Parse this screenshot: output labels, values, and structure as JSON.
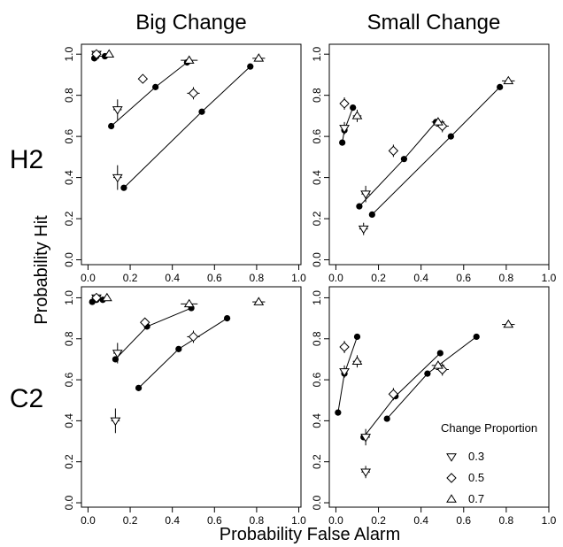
{
  "columns": [
    "Big Change",
    "Small Change"
  ],
  "rows": [
    "H2",
    "C2"
  ],
  "xlabel": "Probability False Alarm",
  "ylabel": "Probability Hit",
  "ticks": [
    "0.0",
    "0.2",
    "0.4",
    "0.6",
    "0.8",
    "1.0"
  ],
  "legend": {
    "title": "Change Proportion",
    "entries": [
      {
        "label": "0.3",
        "marker": "triangle-down"
      },
      {
        "label": "0.5",
        "marker": "diamond"
      },
      {
        "label": "0.7",
        "marker": "triangle-up"
      }
    ]
  },
  "chart_data": [
    {
      "type": "scatter",
      "column": "Big Change",
      "row": "H2",
      "xlim": [
        0,
        1
      ],
      "ylim": [
        0,
        1
      ],
      "model_lines": [
        [
          [
            0.03,
            0.98
          ],
          [
            0.04,
            0.99
          ],
          [
            0.08,
            0.99
          ]
        ],
        [
          [
            0.11,
            0.65
          ],
          [
            0.32,
            0.84
          ],
          [
            0.47,
            0.96
          ]
        ],
        [
          [
            0.17,
            0.35
          ],
          [
            0.54,
            0.72
          ],
          [
            0.77,
            0.94
          ]
        ]
      ],
      "observed": [
        {
          "proportion": "0.3",
          "x": 0.14,
          "y": 0.73,
          "xerr": 0.02,
          "yerr": 0.05
        },
        {
          "proportion": "0.3",
          "x": 0.14,
          "y": 0.4,
          "xerr": 0.02,
          "yerr": 0.06
        },
        {
          "proportion": "0.3",
          "x": 0.04,
          "y": 1.0,
          "xerr": 0.01,
          "yerr": 0.01
        },
        {
          "proportion": "0.5",
          "x": 0.26,
          "y": 0.88,
          "xerr": 0.02,
          "yerr": 0.02
        },
        {
          "proportion": "0.5",
          "x": 0.5,
          "y": 0.81,
          "xerr": 0.03,
          "yerr": 0.03
        },
        {
          "proportion": "0.5",
          "x": 0.04,
          "y": 1.0,
          "xerr": 0.01,
          "yerr": 0.01
        },
        {
          "proportion": "0.7",
          "x": 0.48,
          "y": 0.97,
          "xerr": 0.04,
          "yerr": 0.01
        },
        {
          "proportion": "0.7",
          "x": 0.81,
          "y": 0.98,
          "xerr": 0.03,
          "yerr": 0.01
        },
        {
          "proportion": "0.7",
          "x": 0.1,
          "y": 1.0,
          "xerr": 0.01,
          "yerr": 0.01
        }
      ]
    },
    {
      "type": "scatter",
      "column": "Small Change",
      "row": "H2",
      "xlim": [
        0,
        1
      ],
      "ylim": [
        0,
        1
      ],
      "model_lines": [
        [
          [
            0.03,
            0.57
          ],
          [
            0.04,
            0.63
          ],
          [
            0.08,
            0.74
          ]
        ],
        [
          [
            0.11,
            0.26
          ],
          [
            0.32,
            0.49
          ],
          [
            0.47,
            0.67
          ]
        ],
        [
          [
            0.17,
            0.22
          ],
          [
            0.54,
            0.6
          ],
          [
            0.77,
            0.84
          ]
        ]
      ],
      "observed": [
        {
          "proportion": "0.3",
          "x": 0.14,
          "y": 0.32,
          "xerr": 0.02,
          "yerr": 0.04
        },
        {
          "proportion": "0.3",
          "x": 0.13,
          "y": 0.15,
          "xerr": 0.02,
          "yerr": 0.03
        },
        {
          "proportion": "0.3",
          "x": 0.04,
          "y": 0.64,
          "xerr": 0.01,
          "yerr": 0.03
        },
        {
          "proportion": "0.5",
          "x": 0.04,
          "y": 0.76,
          "xerr": 0.01,
          "yerr": 0.03
        },
        {
          "proportion": "0.5",
          "x": 0.27,
          "y": 0.53,
          "xerr": 0.02,
          "yerr": 0.03
        },
        {
          "proportion": "0.5",
          "x": 0.5,
          "y": 0.65,
          "xerr": 0.03,
          "yerr": 0.03
        },
        {
          "proportion": "0.7",
          "x": 0.1,
          "y": 0.7,
          "xerr": 0.02,
          "yerr": 0.03
        },
        {
          "proportion": "0.7",
          "x": 0.48,
          "y": 0.67,
          "xerr": 0.03,
          "yerr": 0.02
        },
        {
          "proportion": "0.7",
          "x": 0.81,
          "y": 0.87,
          "xerr": 0.03,
          "yerr": 0.01
        }
      ]
    },
    {
      "type": "scatter",
      "column": "Big Change",
      "row": "C2",
      "xlim": [
        0,
        1
      ],
      "ylim": [
        0,
        1
      ],
      "model_lines": [
        [
          [
            0.02,
            0.98
          ],
          [
            0.04,
            0.99
          ],
          [
            0.07,
            0.99
          ]
        ],
        [
          [
            0.13,
            0.7
          ],
          [
            0.28,
            0.86
          ],
          [
            0.49,
            0.95
          ]
        ],
        [
          [
            0.24,
            0.56
          ],
          [
            0.43,
            0.75
          ],
          [
            0.66,
            0.9
          ]
        ]
      ],
      "observed": [
        {
          "proportion": "0.3",
          "x": 0.14,
          "y": 0.73,
          "xerr": 0.02,
          "yerr": 0.05
        },
        {
          "proportion": "0.3",
          "x": 0.13,
          "y": 0.4,
          "xerr": 0.02,
          "yerr": 0.06
        },
        {
          "proportion": "0.3",
          "x": 0.04,
          "y": 1.0,
          "xerr": 0.01,
          "yerr": 0.01
        },
        {
          "proportion": "0.5",
          "x": 0.27,
          "y": 0.88,
          "xerr": 0.02,
          "yerr": 0.02
        },
        {
          "proportion": "0.5",
          "x": 0.5,
          "y": 0.81,
          "xerr": 0.03,
          "yerr": 0.03
        },
        {
          "proportion": "0.5",
          "x": 0.04,
          "y": 1.0,
          "xerr": 0.01,
          "yerr": 0.01
        },
        {
          "proportion": "0.7",
          "x": 0.48,
          "y": 0.97,
          "xerr": 0.04,
          "yerr": 0.01
        },
        {
          "proportion": "0.7",
          "x": 0.81,
          "y": 0.98,
          "xerr": 0.03,
          "yerr": 0.01
        },
        {
          "proportion": "0.7",
          "x": 0.09,
          "y": 1.0,
          "xerr": 0.01,
          "yerr": 0.01
        }
      ]
    },
    {
      "type": "scatter",
      "column": "Small Change",
      "row": "C2",
      "xlim": [
        0,
        1
      ],
      "ylim": [
        0,
        1
      ],
      "model_lines": [
        [
          [
            0.01,
            0.44
          ],
          [
            0.04,
            0.63
          ],
          [
            0.1,
            0.81
          ]
        ],
        [
          [
            0.13,
            0.32
          ],
          [
            0.28,
            0.52
          ],
          [
            0.49,
            0.73
          ]
        ],
        [
          [
            0.24,
            0.41
          ],
          [
            0.43,
            0.63
          ],
          [
            0.66,
            0.81
          ]
        ]
      ],
      "observed": [
        {
          "proportion": "0.3",
          "x": 0.14,
          "y": 0.32,
          "xerr": 0.02,
          "yerr": 0.04
        },
        {
          "proportion": "0.3",
          "x": 0.14,
          "y": 0.15,
          "xerr": 0.02,
          "yerr": 0.03
        },
        {
          "proportion": "0.3",
          "x": 0.04,
          "y": 0.64,
          "xerr": 0.01,
          "yerr": 0.03
        },
        {
          "proportion": "0.5",
          "x": 0.04,
          "y": 0.76,
          "xerr": 0.01,
          "yerr": 0.03
        },
        {
          "proportion": "0.5",
          "x": 0.27,
          "y": 0.53,
          "xerr": 0.02,
          "yerr": 0.03
        },
        {
          "proportion": "0.5",
          "x": 0.5,
          "y": 0.65,
          "xerr": 0.03,
          "yerr": 0.03
        },
        {
          "proportion": "0.7",
          "x": 0.1,
          "y": 0.69,
          "xerr": 0.02,
          "yerr": 0.03
        },
        {
          "proportion": "0.7",
          "x": 0.48,
          "y": 0.67,
          "xerr": 0.03,
          "yerr": 0.02
        },
        {
          "proportion": "0.7",
          "x": 0.81,
          "y": 0.87,
          "xerr": 0.03,
          "yerr": 0.01
        }
      ]
    }
  ]
}
